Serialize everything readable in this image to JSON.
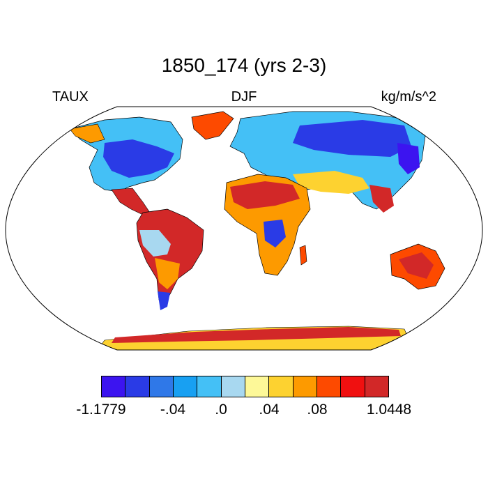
{
  "figure": {
    "title": "1850_174 (yrs 2-3)",
    "left_label": "TAUX",
    "center_label": "DJF",
    "right_label": "kg/m/s^2"
  },
  "colorbar": {
    "colors": [
      "#3c14f0",
      "#2a3be6",
      "#2f78e8",
      "#18a0f2",
      "#44c0f6",
      "#a8d8f0",
      "#fdf898",
      "#fdd230",
      "#fd9a00",
      "#fd4a00",
      "#f01010",
      "#d22828"
    ],
    "tick_labels": [
      "-1.1779",
      "-.04",
      ".0",
      ".04",
      ".08",
      "1.0448"
    ]
  },
  "map": {
    "projection": "Robinson",
    "land_colors": {
      "blue": "#2a3be6",
      "deep_blue": "#3c14f0",
      "light_blue": "#44c0f6",
      "pale_blue": "#a8d8f0",
      "yellow": "#fdd230",
      "orange": "#fd9a00",
      "red": "#d22828"
    }
  }
}
